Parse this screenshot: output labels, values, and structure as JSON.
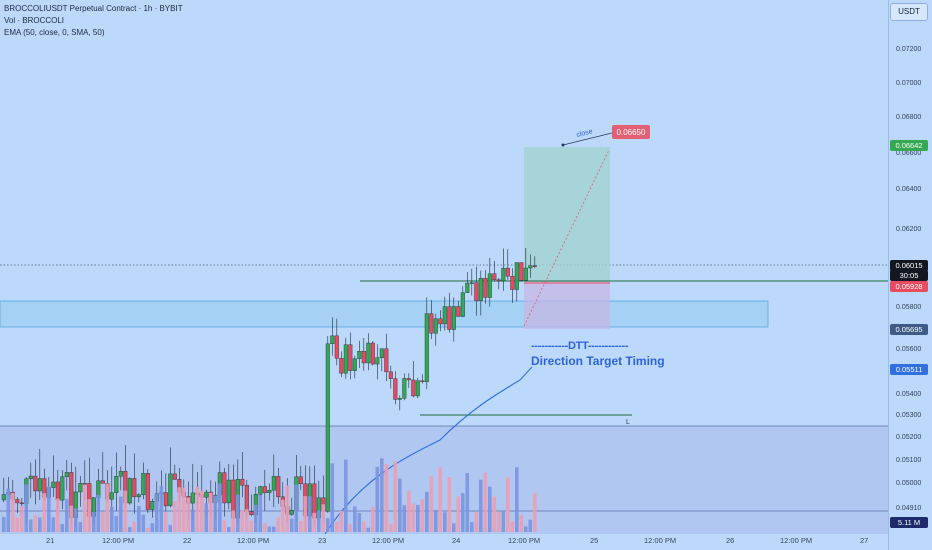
{
  "header": {
    "line1": "BROCCOLIUSDT Perpetual Contract · 1h · BYBIT",
    "line2": "Vol · BROCCOLI",
    "line3": "EMA (50, close, 0, SMA, 50)"
  },
  "currency_button": "USDT",
  "price_axis": [
    "0.07200",
    "0.07000",
    "0.06800",
    "0.06600",
    "0.06400",
    "0.06200",
    "0.05800",
    "0.05600",
    "0.05400",
    "0.05300",
    "0.05200",
    "0.05100",
    "0.05000"
  ],
  "price_labels": {
    "target": "0.06642",
    "current": "0.06015",
    "countdown": "30:05",
    "entry": "0.05928",
    "zone": "0.05695",
    "ema": "0.05511",
    "vol_line": "0.04910",
    "volume": "5.11 M"
  },
  "time_axis": [
    "21",
    "12:00 PM",
    "22",
    "12:00 PM",
    "23",
    "12:00 PM",
    "24",
    "12:00 PM",
    "25",
    "12:00 PM",
    "26",
    "12:00 PM",
    "27"
  ],
  "annotations": {
    "close_text": "close",
    "close_price": "0.06650",
    "dtt": "-----------DTT------------",
    "dtt_full": "Direction Target Timing",
    "line_label": "L"
  },
  "colors": {
    "up": "#34a853",
    "down": "#e84a5f",
    "ema": "#2f6fe0",
    "bg": "#bcd9fb"
  }
}
